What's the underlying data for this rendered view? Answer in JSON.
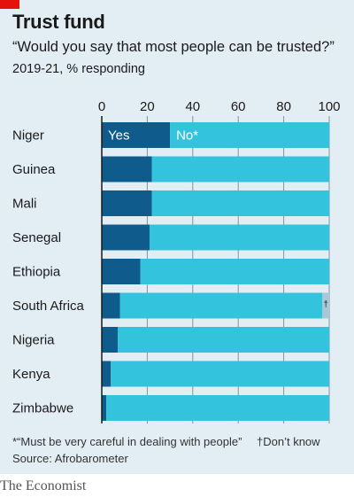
{
  "colors": {
    "accent": "#e3120b",
    "background": "#e2eef4",
    "yes": "#0f5c8c",
    "no": "#33c3dd",
    "dont_know": "#a7c8d6",
    "gridline": "#7f96a3"
  },
  "header": {
    "title": "Trust fund",
    "subtitle": "“Would you say that most people can be trusted?”",
    "subtitle2": "2019-21, % responding"
  },
  "footer": {
    "footnote_no": "*“Must be very careful in dealing with people”",
    "footnote_dk": "†Don’t know",
    "source": "Source: Afrobarometer",
    "brand": "The Economist"
  },
  "chart_data": {
    "type": "bar",
    "orientation": "horizontal",
    "stacked": true,
    "xlim": [
      0,
      100
    ],
    "xticks": [
      0,
      20,
      40,
      60,
      80,
      100
    ],
    "categories": [
      "Niger",
      "Guinea",
      "Mali",
      "Senegal",
      "Ethiopia",
      "South Africa",
      "Nigeria",
      "Kenya",
      "Zimbabwe"
    ],
    "series": [
      {
        "name": "Yes",
        "values": [
          30,
          22,
          22,
          21,
          17,
          8,
          7,
          4,
          2
        ]
      },
      {
        "name": "No*",
        "values": [
          70,
          78,
          78,
          79,
          83,
          89,
          93,
          96,
          98
        ]
      },
      {
        "name": "†",
        "values": [
          0,
          0,
          0,
          0,
          0,
          3,
          0,
          0,
          0
        ]
      }
    ],
    "inline_labels": [
      "Yes",
      "No*"
    ]
  }
}
